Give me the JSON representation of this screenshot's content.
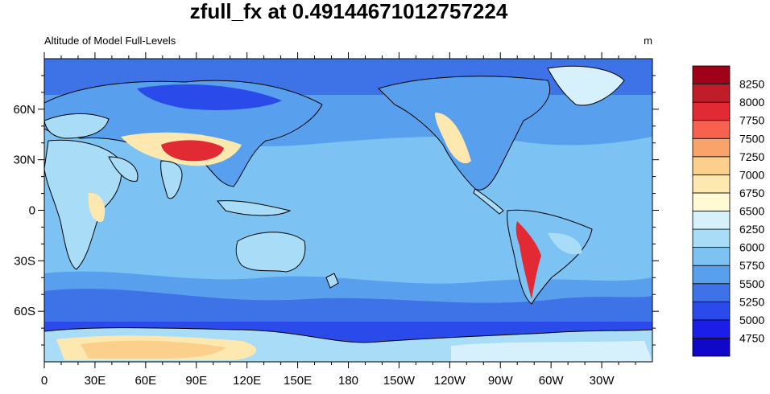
{
  "chart_data": {
    "type": "heatmap",
    "title": "zfull_fx at 0.49144671012757224",
    "left_string": "Altitude of Model Full-Levels",
    "right_string": "m",
    "x_ticks": [
      "0",
      "30E",
      "60E",
      "90E",
      "120E",
      "150E",
      "180",
      "150W",
      "120W",
      "90W",
      "60W",
      "30W"
    ],
    "y_ticks": [
      "60N",
      "30N",
      "0",
      "30S",
      "60S"
    ],
    "xlim": [
      0,
      360
    ],
    "ylim": [
      -90,
      90
    ],
    "colorbar": {
      "levels": [
        4750,
        5000,
        5250,
        5500,
        5750,
        6000,
        6250,
        6500,
        6750,
        7000,
        7250,
        7500,
        7750,
        8000,
        8250
      ],
      "labels": [
        "8250",
        "8000",
        "7750",
        "7500",
        "7250",
        "7000",
        "6750",
        "6500",
        "6250",
        "6000",
        "5750",
        "5500",
        "5250",
        "5000",
        "4750"
      ],
      "colors": [
        "#1007c8",
        "#1a1ee6",
        "#2a4bea",
        "#3d73e6",
        "#58a0ee",
        "#7cc3f3",
        "#a9dcf6",
        "#d6f1fb",
        "#fff9d4",
        "#fde8b0",
        "#fbd08c",
        "#f9a36a",
        "#f7614f",
        "#e12a33",
        "#c01d2b",
        "#a00018"
      ]
    },
    "map_colors": {
      "ocean_mid": "#7cc3f3",
      "ocean_high_lat": "#3d73e6",
      "polar_ice": "#fde8b0",
      "high_terrain": "#e12a33",
      "coast": "#000000"
    }
  }
}
